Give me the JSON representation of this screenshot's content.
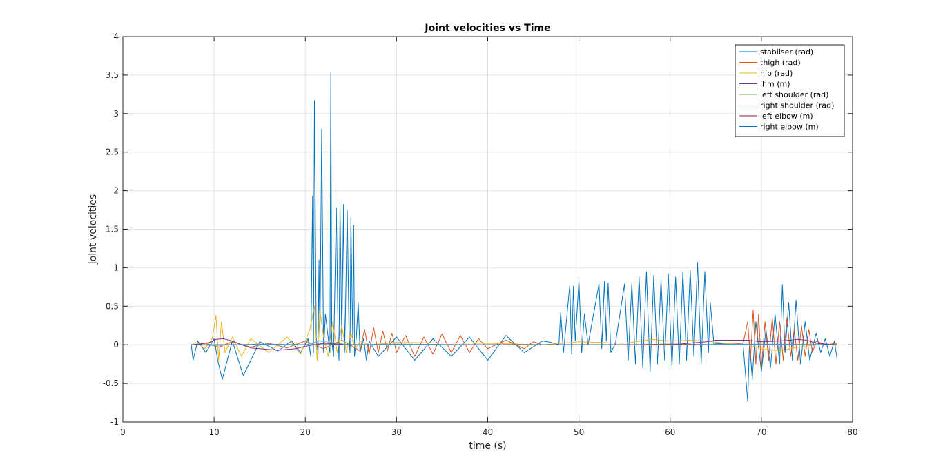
{
  "chart_data": {
    "type": "line",
    "title": "Joint velocities vs Time",
    "xlabel": "time (s)",
    "ylabel": "joint velocities",
    "xlim": [
      0,
      80
    ],
    "ylim": [
      -1,
      4
    ],
    "xticks": [
      0,
      10,
      20,
      30,
      40,
      50,
      60,
      70,
      80
    ],
    "yticks": [
      -1,
      -0.5,
      0,
      0.5,
      1,
      1.5,
      2,
      2.5,
      3,
      3.5,
      4
    ],
    "xtick_labels": [
      "0",
      "10",
      "20",
      "30",
      "40",
      "50",
      "60",
      "70",
      "80"
    ],
    "ytick_labels": [
      "-1",
      "-0.5",
      "0",
      "0.5",
      "1",
      "1.5",
      "2",
      "2.5",
      "3",
      "3.5",
      "4"
    ],
    "grid": true,
    "legend_position": "top-right",
    "series": [
      {
        "name": "stabilser (rad)",
        "color": "#0072BD",
        "x": [
          7.5,
          7.7,
          8.2,
          9.1,
          10.0,
          10.4,
          10.9,
          12.0,
          13.2,
          15.0,
          17.0,
          18.5,
          19.5,
          20.3,
          20.6,
          20.8,
          20.9,
          21.0,
          21.2,
          21.4,
          21.5,
          21.6,
          21.8,
          22.0,
          22.2,
          22.5,
          22.7,
          22.8,
          22.9,
          23.1,
          23.4,
          23.6,
          23.7,
          23.8,
          24.0,
          24.2,
          24.3,
          24.4,
          24.6,
          24.8,
          24.9,
          25.0,
          25.2,
          25.3,
          25.4,
          25.6,
          25.8,
          26.0,
          26.4,
          26.7,
          27.0,
          28.0,
          30.0,
          32.0,
          34.0,
          36.0,
          38.0,
          40.0,
          42.0,
          44.0,
          46.0,
          47.0,
          47.8,
          48.0,
          48.3,
          49.0,
          49.2,
          49.4,
          49.6,
          50.0,
          50.3,
          50.6,
          51.0,
          52.2,
          52.5,
          52.8,
          53.0,
          53.2,
          53.5,
          54.0,
          55.0,
          55.4,
          55.8,
          56.2,
          56.6,
          57.0,
          57.4,
          57.8,
          58.2,
          58.6,
          59.0,
          59.4,
          59.8,
          60.2,
          60.6,
          61.0,
          61.4,
          61.8,
          62.2,
          62.6,
          63.0,
          63.4,
          63.8,
          64.2,
          64.4,
          64.8,
          65.0,
          66.0,
          68.0,
          68.5,
          68.7,
          69.0,
          69.4,
          70.0,
          70.5,
          71.0,
          71.5,
          72.0,
          72.3,
          72.6,
          73.0,
          73.4,
          73.8,
          74.3,
          74.8,
          75.3,
          76.0,
          76.5,
          77.0,
          77.5,
          78.0,
          78.3
        ],
        "y": [
          0.0,
          -0.2,
          0.05,
          -0.1,
          0.08,
          -0.2,
          -0.45,
          0.05,
          -0.4,
          0.04,
          -0.08,
          0.05,
          -0.1,
          0.08,
          -0.15,
          1.93,
          -0.1,
          3.17,
          0.1,
          -0.12,
          1.1,
          0.05,
          2.8,
          -0.1,
          0.4,
          0.1,
          -0.1,
          3.54,
          0.05,
          -0.15,
          1.78,
          0.1,
          -0.2,
          1.85,
          0.05,
          1.82,
          -0.1,
          0.4,
          1.75,
          0.08,
          -0.1,
          1.65,
          0.05,
          1.55,
          -0.15,
          0.1,
          0.55,
          -0.1,
          0.08,
          -0.2,
          0.05,
          -0.15,
          0.1,
          -0.2,
          0.08,
          -0.15,
          0.1,
          -0.2,
          0.12,
          -0.1,
          0.05,
          0.03,
          0.0,
          0.42,
          -0.1,
          0.78,
          -0.12,
          0.76,
          0.05,
          0.83,
          -0.1,
          0.4,
          0.0,
          0.79,
          -0.05,
          0.82,
          0.05,
          0.8,
          -0.1,
          0.02,
          0.79,
          -0.2,
          0.8,
          -0.25,
          0.88,
          -0.3,
          0.95,
          -0.35,
          0.9,
          -0.25,
          0.85,
          -0.2,
          0.92,
          -0.3,
          0.88,
          -0.25,
          0.95,
          -0.2,
          0.97,
          -0.15,
          1.07,
          -0.25,
          0.95,
          -0.1,
          0.55,
          0.0,
          0.02,
          0.01,
          0.0,
          -0.73,
          0.05,
          -0.45,
          0.3,
          -0.35,
          0.2,
          -0.3,
          0.4,
          -0.25,
          0.78,
          -0.1,
          0.55,
          -0.2,
          0.58,
          -0.25,
          0.3,
          -0.2,
          0.15,
          -0.1,
          0.08,
          -0.15,
          0.05,
          -0.18
        ]
      },
      {
        "name": "thigh (rad)",
        "color": "#D95319",
        "x": [
          7.5,
          9.0,
          10.5,
          12.0,
          14.0,
          16.0,
          18.0,
          20.0,
          22.0,
          24.0,
          26.0,
          26.5,
          27.0,
          27.5,
          28.0,
          28.5,
          29.0,
          29.5,
          30.0,
          31.0,
          32.0,
          33.0,
          34.0,
          35.0,
          36.0,
          37.0,
          38.0,
          39.0,
          40.0,
          42.0,
          44.0,
          45.0,
          46.0,
          50.0,
          55.0,
          60.0,
          65.0,
          68.0,
          68.5,
          68.8,
          69.1,
          69.4,
          69.7,
          70.0,
          70.4,
          70.8,
          71.2,
          71.6,
          72.0,
          72.4,
          72.8,
          73.2,
          73.6,
          74.0,
          74.4,
          74.8,
          75.2,
          75.6,
          76.0,
          77.0,
          78.3
        ],
        "y": [
          0.0,
          0.02,
          -0.03,
          0.04,
          -0.03,
          0.02,
          -0.04,
          0.05,
          -0.05,
          0.06,
          -0.08,
          0.2,
          -0.12,
          0.22,
          -0.1,
          0.18,
          -0.08,
          0.15,
          -0.1,
          0.12,
          -0.15,
          0.1,
          -0.12,
          0.14,
          -0.1,
          0.12,
          -0.1,
          0.08,
          -0.05,
          0.06,
          -0.05,
          0.04,
          0.0,
          0.0,
          0.0,
          0.01,
          0.0,
          0.02,
          0.3,
          -0.2,
          0.45,
          -0.25,
          0.4,
          -0.3,
          0.3,
          -0.2,
          0.35,
          -0.25,
          0.3,
          -0.2,
          0.35,
          -0.15,
          0.2,
          -0.2,
          0.25,
          -0.15,
          0.2,
          -0.1,
          0.05,
          0.0,
          0.02
        ]
      },
      {
        "name": "hip (rad)",
        "color": "#EDB120",
        "x": [
          7.5,
          8.0,
          9.0,
          9.8,
          10.2,
          10.5,
          10.8,
          11.2,
          12.0,
          13.0,
          14.0,
          16.0,
          18.0,
          19.5,
          20.5,
          21.0,
          21.3,
          21.6,
          22.0,
          22.5,
          23.0,
          23.5,
          24.0,
          24.5,
          25.0,
          25.5,
          26.0,
          27.0,
          30.0,
          40.0,
          46.0,
          50.0,
          55.0,
          58.0,
          60.0,
          62.0,
          64.0,
          66.0,
          68.5,
          70.0,
          72.0,
          74.0,
          76.0,
          78.3
        ],
        "y": [
          0.0,
          0.03,
          -0.05,
          0.08,
          0.38,
          -0.2,
          0.3,
          -0.1,
          0.1,
          -0.15,
          0.08,
          -0.1,
          0.1,
          -0.12,
          0.2,
          0.5,
          -0.2,
          0.45,
          0.1,
          -0.15,
          0.3,
          -0.1,
          0.25,
          -0.1,
          0.15,
          -0.05,
          0.05,
          0.0,
          0.03,
          0.02,
          0.0,
          0.04,
          0.02,
          0.07,
          0.05,
          0.06,
          0.05,
          0.02,
          0.0,
          -0.05,
          -0.08,
          -0.03,
          0.0,
          0.01
        ]
      },
      {
        "name": "lhm (m)",
        "color": "#7E2F8E",
        "x": [
          7.5,
          8.5,
          9.5,
          10.2,
          11.0,
          12.0,
          13.0,
          14.0,
          15.0,
          16.0,
          17.0,
          18.0,
          19.0,
          20.0,
          22.0,
          25.0,
          30.0,
          40.0,
          46.0,
          50.0,
          55.0,
          60.0,
          64.0,
          65.0,
          68.5,
          70.0,
          72.0,
          74.0,
          75.0,
          76.0,
          78.3
        ],
        "y": [
          0.0,
          0.01,
          0.03,
          0.07,
          0.08,
          0.05,
          0.0,
          -0.04,
          -0.05,
          -0.06,
          -0.07,
          -0.06,
          -0.05,
          -0.02,
          0.02,
          0.0,
          0.0,
          0.0,
          0.0,
          0.0,
          0.0,
          0.0,
          0.04,
          0.06,
          0.06,
          0.04,
          0.05,
          0.07,
          0.06,
          0.02,
          0.0
        ]
      },
      {
        "name": "left shoulder (rad)",
        "color": "#77AC30",
        "x": [
          7.5,
          20.0,
          30.0,
          40.0,
          50.0,
          60.0,
          70.0,
          78.3
        ],
        "y": [
          0.0,
          0.0,
          0.0,
          0.0,
          0.0,
          0.0,
          0.0,
          0.0
        ]
      },
      {
        "name": "right shoulder (rad)",
        "color": "#4DBEEE",
        "x": [
          7.5,
          10.0,
          15.0,
          20.0,
          21.5,
          25.0,
          30.0,
          40.0,
          50.0,
          60.0,
          70.0,
          78.3
        ],
        "y": [
          0.0,
          -0.01,
          0.01,
          0.0,
          0.05,
          0.0,
          0.01,
          0.0,
          0.0,
          0.0,
          0.01,
          0.0
        ]
      },
      {
        "name": "left elbow (m)",
        "color": "#A2142F",
        "x": [
          7.5,
          20.0,
          30.0,
          40.0,
          50.0,
          60.0,
          70.0,
          78.3
        ],
        "y": [
          0.0,
          0.0,
          0.0,
          0.0,
          0.0,
          0.0,
          0.0,
          0.0
        ]
      },
      {
        "name": "right elbow (m)",
        "color": "#0072BD",
        "x": [
          7.5,
          20.0,
          30.0,
          40.0,
          50.0,
          60.0,
          70.0,
          78.3
        ],
        "y": [
          0.0,
          0.0,
          0.0,
          0.0,
          0.0,
          0.0,
          0.0,
          0.0
        ]
      }
    ]
  }
}
